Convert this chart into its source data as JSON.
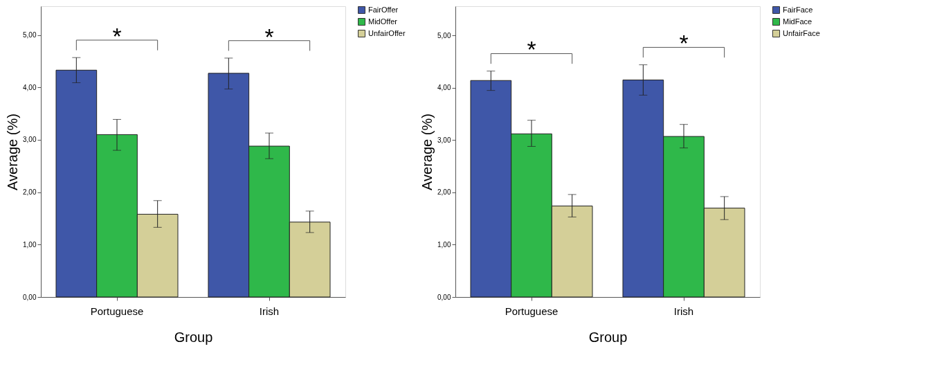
{
  "chart_data": [
    {
      "type": "bar",
      "xlabel": "Group",
      "ylabel": "Average (%)",
      "categories": [
        "Portuguese",
        "Irish"
      ],
      "ylim": [
        0,
        5.55
      ],
      "yticks": [
        {
          "value": 0,
          "label": "0,00"
        },
        {
          "value": 1,
          "label": "1,00"
        },
        {
          "value": 2,
          "label": "2,00"
        },
        {
          "value": 3,
          "label": "3,00"
        },
        {
          "value": 4,
          "label": "4,00"
        },
        {
          "value": 5,
          "label": "5,00"
        }
      ],
      "series": [
        {
          "name": "FairOffer",
          "color": "#3f57a8",
          "values": [
            4.33,
            4.27
          ],
          "errors": [
            [
              4.09,
              4.57
            ],
            [
              3.97,
              4.56
            ]
          ]
        },
        {
          "name": "MidOffer",
          "color": "#2fb84a",
          "values": [
            3.1,
            2.88
          ],
          "errors": [
            [
              2.8,
              3.39
            ],
            [
              2.64,
              3.13
            ]
          ]
        },
        {
          "name": "UnfairOffer",
          "color": "#d4cf98",
          "values": [
            1.58,
            1.43
          ],
          "errors": [
            [
              1.33,
              1.84
            ],
            [
              1.23,
              1.64
            ]
          ]
        }
      ],
      "annotations": [
        "*",
        "*"
      ],
      "legend": "right",
      "grid": false
    },
    {
      "type": "bar",
      "xlabel": "Group",
      "ylabel": "Average (%)",
      "categories": [
        "Portuguese",
        "Irish"
      ],
      "ylim": [
        0,
        5.56
      ],
      "yticks": [
        {
          "value": 0,
          "label": "0,00"
        },
        {
          "value": 1,
          "label": "1,00"
        },
        {
          "value": 2,
          "label": "2,00"
        },
        {
          "value": 3,
          "label": "3,00"
        },
        {
          "value": 4,
          "label": "4,00"
        },
        {
          "value": 5,
          "label": "5,00"
        }
      ],
      "series": [
        {
          "name": "FairFace",
          "color": "#3f57a8",
          "values": [
            4.14,
            4.15
          ],
          "errors": [
            [
              3.95,
              4.32
            ],
            [
              3.86,
              4.44
            ]
          ]
        },
        {
          "name": "MidFace",
          "color": "#2fb84a",
          "values": [
            3.12,
            3.07
          ],
          "errors": [
            [
              2.88,
              3.38
            ],
            [
              2.85,
              3.3
            ]
          ]
        },
        {
          "name": "UnfairFace",
          "color": "#d4cf98",
          "values": [
            1.74,
            1.7
          ],
          "errors": [
            [
              1.53,
              1.96
            ],
            [
              1.48,
              1.92
            ]
          ]
        }
      ],
      "annotations": [
        "*",
        "*"
      ],
      "legend": "right",
      "grid": false
    }
  ]
}
